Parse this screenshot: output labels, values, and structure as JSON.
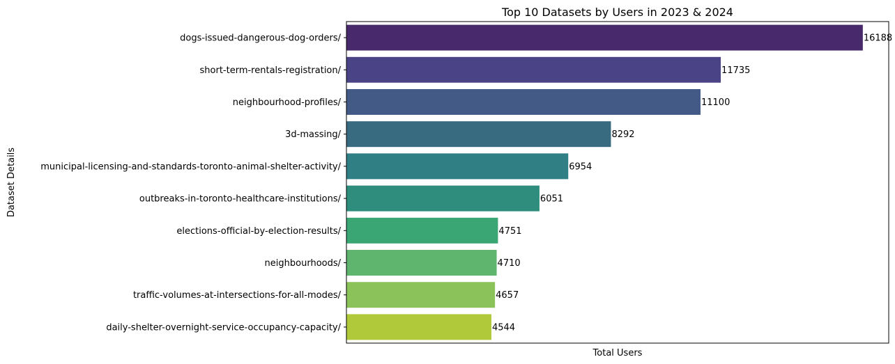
{
  "chart_data": {
    "type": "bar",
    "orientation": "horizontal",
    "title": "Top 10 Datasets by Users in 2023 & 2024",
    "xlabel": "Total Users",
    "ylabel": "Dataset Details",
    "xlim": [
      0,
      17000
    ],
    "grid": false,
    "legend": "none",
    "categories": [
      "dogs-issued-dangerous-dog-orders/",
      "short-term-rentals-registration/",
      "neighbourhood-profiles/",
      "3d-massing/",
      "municipal-licensing-and-standards-toronto-animal-shelter-activity/",
      "outbreaks-in-toronto-healthcare-institutions/",
      "elections-official-by-election-results/",
      "neighbourhoods/",
      "traffic-volumes-at-intersections-for-all-modes/",
      "daily-shelter-overnight-service-occupancy-capacity/"
    ],
    "values": [
      16188,
      11735,
      11100,
      8292,
      6954,
      6051,
      4751,
      4710,
      4657,
      4544
    ],
    "colors": [
      "#482a6c",
      "#4a4386",
      "#435a87",
      "#386b80",
      "#2f7f84",
      "#2e8d7c",
      "#3aa674",
      "#5fb56e",
      "#8bc25a",
      "#b0c93a"
    ]
  }
}
